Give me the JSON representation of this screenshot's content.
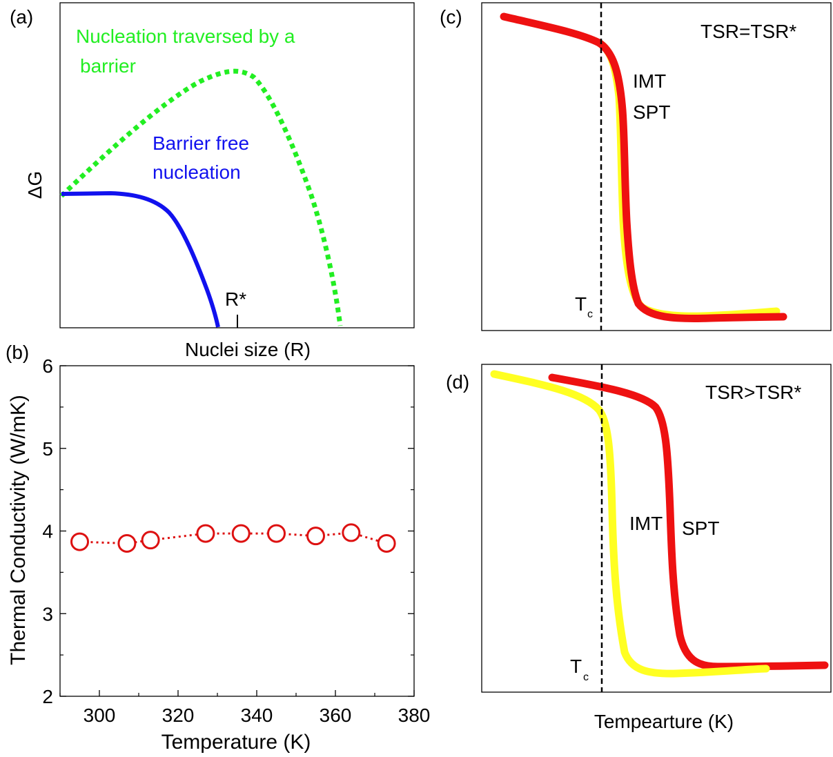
{
  "panels": {
    "a": {
      "tag": "(a)",
      "ylabel": "ΔG",
      "xlabel": "Nuclei size (R)",
      "green_label_1": "Nucleation traversed by a",
      "green_label_2": "barrier",
      "blue_label_1": "Barrier free",
      "blue_label_2": "nucleation",
      "rstar_label": "R*"
    },
    "b": {
      "tag": "(b)"
    },
    "c": {
      "tag": "(c)",
      "condition": "TSR=TSR*",
      "label_imt": "IMT",
      "label_spt": "SPT",
      "tc_main": "T",
      "tc_sub": "c"
    },
    "d": {
      "tag": "(d)",
      "condition": "TSR>TSR*",
      "label_imt": "IMT",
      "label_spt": "SPT",
      "tc_main": "T",
      "tc_sub": "c",
      "xlabel": "Tempearture (K)"
    }
  },
  "colors": {
    "green": "#22ee22",
    "blue": "#1111ee",
    "red": "#ee1111",
    "yellow": "#ffff22",
    "marker": "#dd1111"
  },
  "chart_data": [
    {
      "type": "line",
      "panel": "a",
      "title": "",
      "xlabel": "Nuclei size (R)",
      "ylabel": "ΔG",
      "annotation": "R*",
      "series": [
        {
          "name": "Nucleation traversed by a barrier",
          "style": "dotted",
          "color": "#22ee22"
        },
        {
          "name": "Barrier free nucleation",
          "style": "solid",
          "color": "#1111ee"
        }
      ]
    },
    {
      "type": "scatter",
      "panel": "b",
      "xlabel": "Temperature (K)",
      "ylabel": "Thermal Conductivity (W/mK)",
      "xlim": [
        290,
        380
      ],
      "ylim": [
        2,
        6
      ],
      "xticks": [
        "300",
        "320",
        "340",
        "360",
        "380"
      ],
      "yticks": [
        "2",
        "3",
        "4",
        "5",
        "6"
      ],
      "grid": false,
      "x": [
        295,
        307,
        313,
        327,
        336,
        345,
        355,
        364,
        373
      ],
      "y": [
        3.87,
        3.85,
        3.89,
        3.97,
        3.97,
        3.97,
        3.94,
        3.98,
        3.85
      ]
    },
    {
      "type": "line",
      "panel": "c",
      "xlabel": "Tempearture (K)",
      "annotation": "TSR=TSR*",
      "series": [
        {
          "name": "IMT",
          "color": "#ffff22"
        },
        {
          "name": "SPT",
          "color": "#ee1111"
        }
      ]
    },
    {
      "type": "line",
      "panel": "d",
      "xlabel": "Tempearture (K)",
      "annotation": "TSR>TSR*",
      "series": [
        {
          "name": "IMT",
          "color": "#ffff22"
        },
        {
          "name": "SPT",
          "color": "#ee1111"
        }
      ]
    }
  ]
}
